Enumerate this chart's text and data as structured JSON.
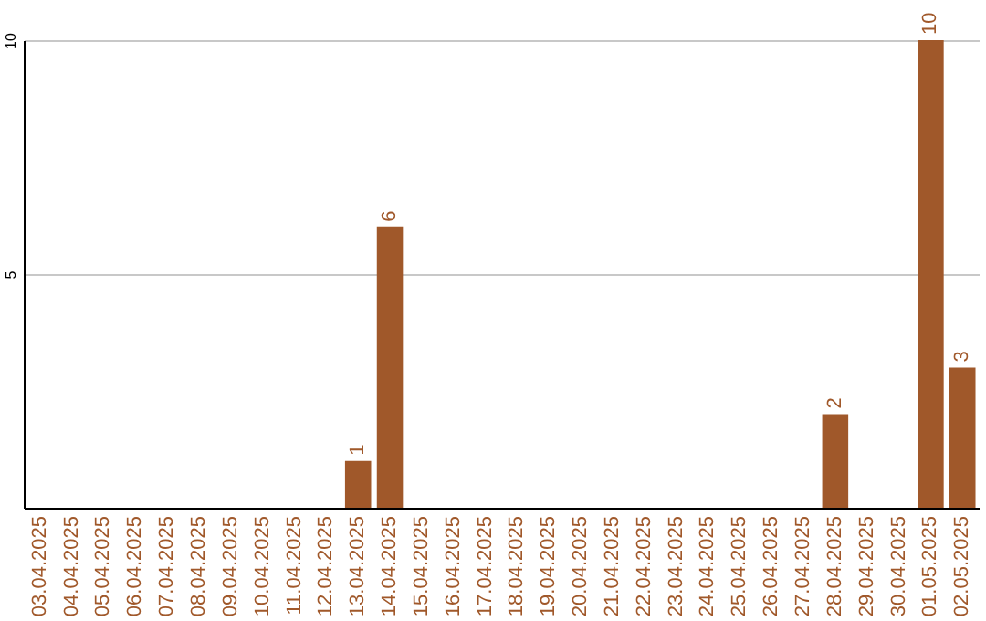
{
  "chart_data": {
    "type": "bar",
    "categories": [
      "03.04.2025",
      "04.04.2025",
      "05.04.2025",
      "06.04.2025",
      "07.04.2025",
      "08.04.2025",
      "09.04.2025",
      "10.04.2025",
      "11.04.2025",
      "12.04.2025",
      "13.04.2025",
      "14.04.2025",
      "15.04.2025",
      "16.04.2025",
      "17.04.2025",
      "18.04.2025",
      "19.04.2025",
      "20.04.2025",
      "21.04.2025",
      "22.04.2025",
      "23.04.2025",
      "24.04.2025",
      "25.04.2025",
      "26.04.2025",
      "27.04.2025",
      "28.04.2025",
      "29.04.2025",
      "30.04.2025",
      "01.05.2025",
      "02.05.2025"
    ],
    "values": [
      0,
      0,
      0,
      0,
      0,
      0,
      0,
      0,
      0,
      0,
      1,
      6,
      0,
      0,
      0,
      0,
      0,
      0,
      0,
      0,
      0,
      0,
      0,
      0,
      0,
      2,
      0,
      0,
      10,
      3
    ],
    "value_labels": [
      null,
      null,
      null,
      null,
      null,
      null,
      null,
      null,
      null,
      null,
      "1",
      "6",
      null,
      null,
      null,
      null,
      null,
      null,
      null,
      null,
      null,
      null,
      null,
      null,
      null,
      "2",
      null,
      null,
      "10",
      "3"
    ],
    "color": "#a0582a",
    "ylim": [
      0,
      10
    ],
    "yticks": [
      5,
      10
    ],
    "grid": "y"
  }
}
